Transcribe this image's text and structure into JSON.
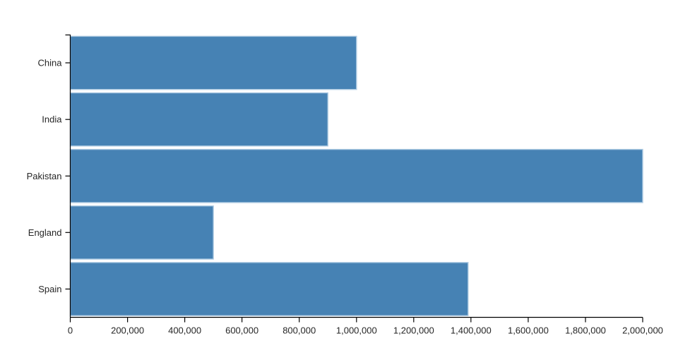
{
  "chart_data": {
    "type": "bar",
    "orientation": "horizontal",
    "title": "",
    "xlabel": "",
    "ylabel": "",
    "categories": [
      "China",
      "India",
      "Pakistan",
      "England",
      "Spain"
    ],
    "values": [
      1000000,
      900000,
      2000000,
      500000,
      1390000
    ],
    "xlim": [
      0,
      2000000
    ],
    "x_ticks": [
      0,
      200000,
      400000,
      600000,
      800000,
      1000000,
      1200000,
      1400000,
      1600000,
      1800000,
      2000000
    ],
    "x_tick_labels": [
      "0",
      "200,000",
      "400,000",
      "600,000",
      "800,000",
      "1,000,000",
      "1,200,000",
      "1,400,000",
      "1,600,000",
      "1,800,000",
      "2,000,000"
    ],
    "grid": false,
    "legend": false,
    "colors": {
      "bar_fill": "#4682b4",
      "bar_stroke": "#abc9e1",
      "axis_line": "#000000",
      "tick_label": "#262626"
    }
  }
}
